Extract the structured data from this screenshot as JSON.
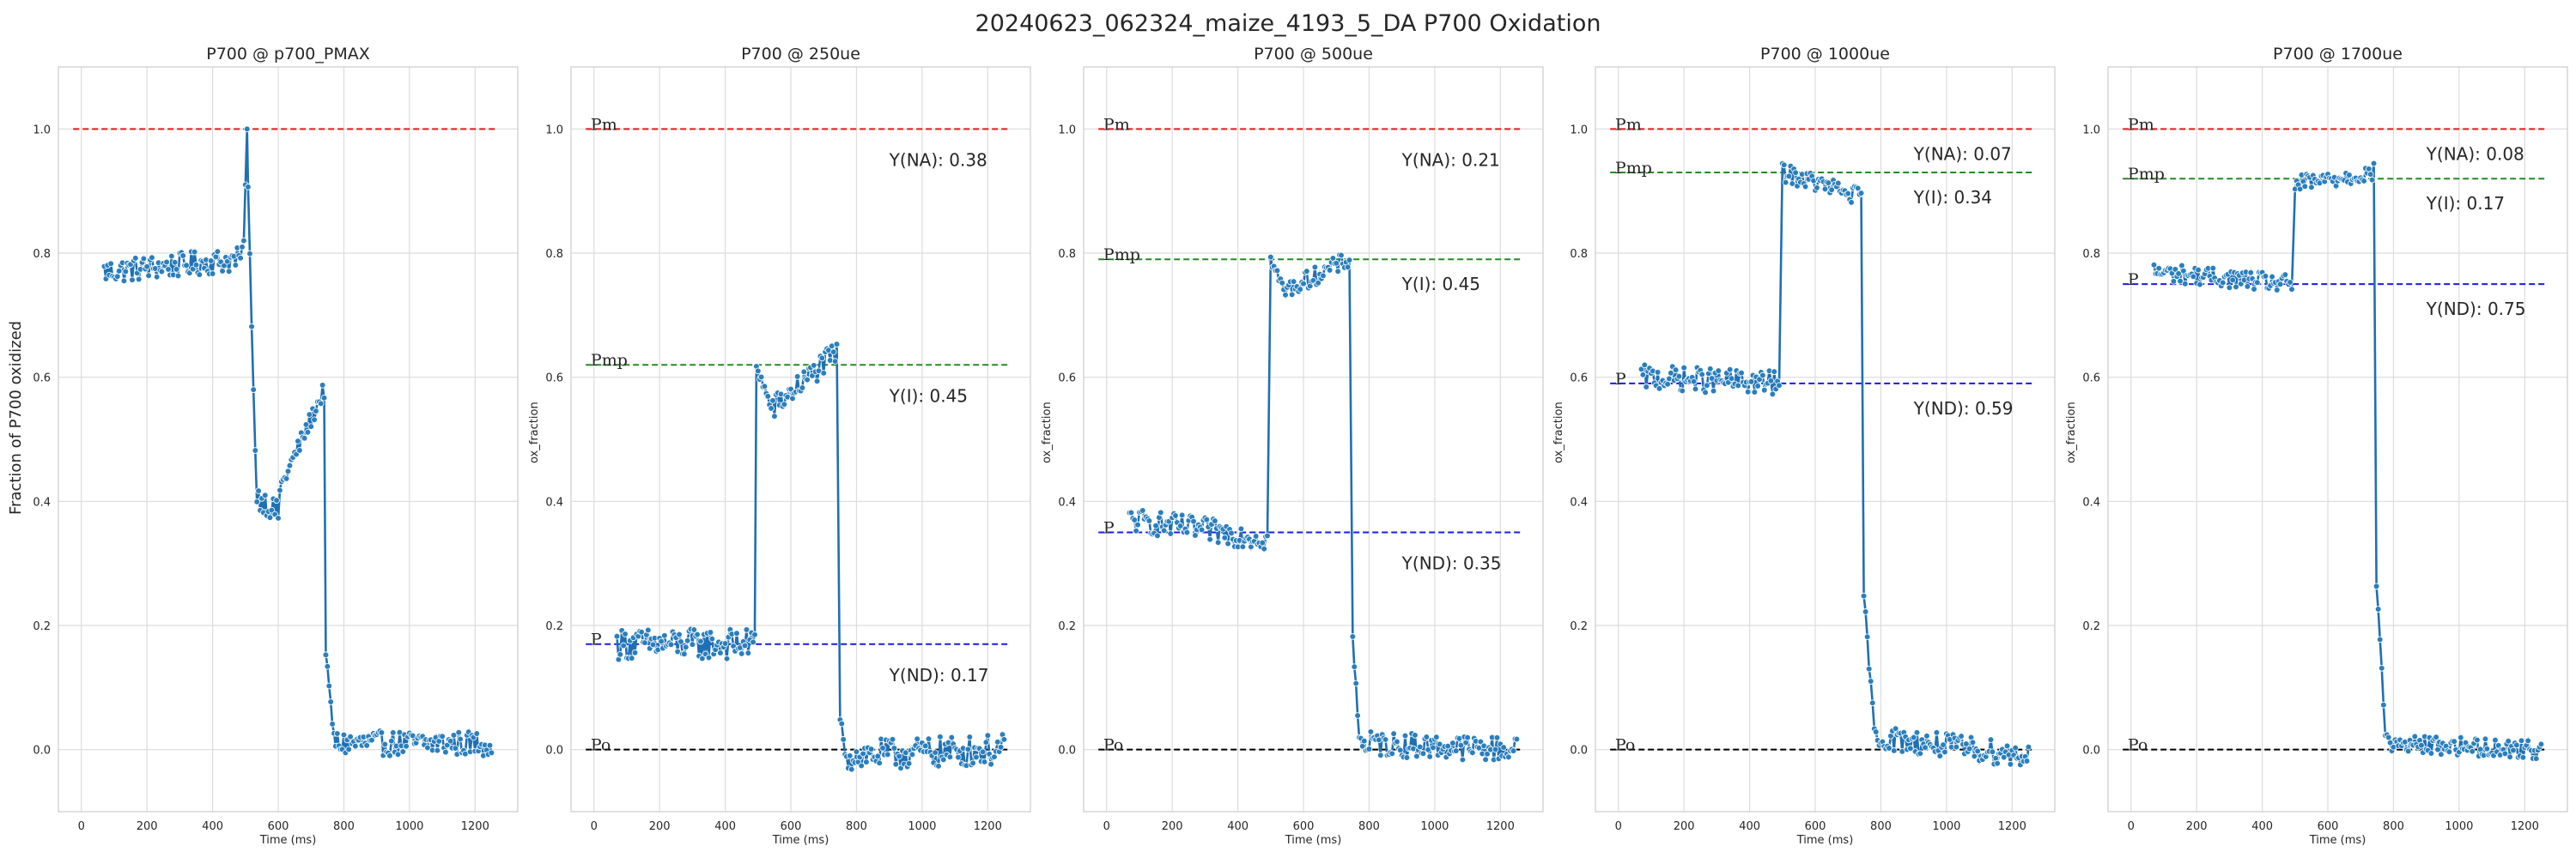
{
  "figure": {
    "title": "20240623_062324_maize_4193_5_DA P700 Oxidation",
    "ylabel": "Fraction of P700 oxidized",
    "colors": {
      "trace": "#1f6fb4",
      "point": "#2a7fbd",
      "pm": "#e31a1c",
      "pmp": "#238b23",
      "p": "#1a1aee",
      "po": "#000000",
      "grid": "#dcdcdc",
      "axes_bg": "#ffffff",
      "frame": "#cccccc"
    }
  },
  "chart_data": [
    {
      "type": "line",
      "title": "P700 @ p700_PMAX",
      "xlabel": "Time (ms)",
      "ylabel": "",
      "xlim": [
        -70,
        1330
      ],
      "ylim": [
        -0.1,
        1.1
      ],
      "xticks": [
        0,
        200,
        400,
        600,
        800,
        1000,
        1200
      ],
      "yticks": [
        0.0,
        0.2,
        0.4,
        0.6,
        0.8,
        1.0
      ],
      "grid": true,
      "ref_lines": [
        {
          "name": "Pm",
          "y": 1.0,
          "color": "#e31a1c",
          "show_label": false
        }
      ],
      "yield_labels": [],
      "segments": [
        {
          "x0": 70,
          "x1": 490,
          "y0": 0.77,
          "y1": 0.79,
          "noise": 0.02
        },
        {
          "x0": 495,
          "x1": 505,
          "y0": 0.82,
          "y1": 1.0,
          "noise": 0.0
        },
        {
          "x0": 508,
          "x1": 530,
          "y0": 0.9,
          "y1": 0.48,
          "noise": 0.01
        },
        {
          "x0": 535,
          "x1": 600,
          "y0": 0.41,
          "y1": 0.38,
          "noise": 0.02
        },
        {
          "x0": 605,
          "x1": 740,
          "y0": 0.42,
          "y1": 0.58,
          "noise": 0.015
        },
        {
          "x0": 745,
          "x1": 770,
          "y0": 0.15,
          "y1": 0.02,
          "noise": 0.01
        },
        {
          "x0": 775,
          "x1": 1250,
          "y0": 0.01,
          "y1": 0.01,
          "noise": 0.02
        }
      ]
    },
    {
      "type": "line",
      "title": "P700 @ 250ue",
      "xlabel": "Time (ms)",
      "ylabel": "ox_fraction",
      "xlim": [
        -70,
        1330
      ],
      "ylim": [
        -0.1,
        1.1
      ],
      "xticks": [
        0,
        200,
        400,
        600,
        800,
        1000,
        1200
      ],
      "yticks": [
        0.0,
        0.2,
        0.4,
        0.6,
        0.8,
        1.0
      ],
      "grid": true,
      "ref_lines": [
        {
          "name": "Pm",
          "y": 1.0,
          "color": "#e31a1c",
          "show_label": true
        },
        {
          "name": "Pmp",
          "y": 0.62,
          "color": "#238b23",
          "show_label": true
        },
        {
          "name": "P",
          "y": 0.17,
          "color": "#1a1aee",
          "show_label": true
        },
        {
          "name": "Po",
          "y": 0.0,
          "color": "#000000",
          "show_label": true
        }
      ],
      "yield_labels": [
        {
          "text": "Y(NA): 0.38",
          "x": 900,
          "y": 0.95
        },
        {
          "text": "Y(I): 0.45",
          "x": 900,
          "y": 0.57
        },
        {
          "text": "Y(ND): 0.17",
          "x": 900,
          "y": 0.12
        }
      ],
      "segments": [
        {
          "x0": 70,
          "x1": 490,
          "y0": 0.17,
          "y1": 0.17,
          "noise": 0.025
        },
        {
          "x0": 495,
          "x1": 540,
          "y0": 0.62,
          "y1": 0.55,
          "noise": 0.01
        },
        {
          "x0": 545,
          "x1": 740,
          "y0": 0.55,
          "y1": 0.64,
          "noise": 0.02
        },
        {
          "x0": 750,
          "x1": 765,
          "y0": 0.05,
          "y1": 0.0,
          "noise": 0.01
        },
        {
          "x0": 770,
          "x1": 1250,
          "y0": -0.01,
          "y1": 0.0,
          "noise": 0.025
        }
      ]
    },
    {
      "type": "line",
      "title": "P700 @ 500ue",
      "xlabel": "Time (ms)",
      "ylabel": "ox_fraction",
      "xlim": [
        -70,
        1330
      ],
      "ylim": [
        -0.1,
        1.1
      ],
      "xticks": [
        0,
        200,
        400,
        600,
        800,
        1000,
        1200
      ],
      "yticks": [
        0.0,
        0.2,
        0.4,
        0.6,
        0.8,
        1.0
      ],
      "grid": true,
      "ref_lines": [
        {
          "name": "Pm",
          "y": 1.0,
          "color": "#e31a1c",
          "show_label": true
        },
        {
          "name": "Pmp",
          "y": 0.79,
          "color": "#238b23",
          "show_label": true
        },
        {
          "name": "P",
          "y": 0.35,
          "color": "#1a1aee",
          "show_label": true
        },
        {
          "name": "Po",
          "y": 0.0,
          "color": "#000000",
          "show_label": true
        }
      ],
      "yield_labels": [
        {
          "text": "Y(NA): 0.21",
          "x": 900,
          "y": 0.95
        },
        {
          "text": "Y(I): 0.45",
          "x": 900,
          "y": 0.75
        },
        {
          "text": "Y(ND): 0.35",
          "x": 900,
          "y": 0.3
        }
      ],
      "segments": [
        {
          "x0": 70,
          "x1": 490,
          "y0": 0.37,
          "y1": 0.34,
          "noise": 0.02
        },
        {
          "x0": 500,
          "x1": 540,
          "y0": 0.79,
          "y1": 0.74,
          "noise": 0.01
        },
        {
          "x0": 545,
          "x1": 740,
          "y0": 0.74,
          "y1": 0.79,
          "noise": 0.015
        },
        {
          "x0": 750,
          "x1": 770,
          "y0": 0.18,
          "y1": 0.02,
          "noise": 0.01
        },
        {
          "x0": 775,
          "x1": 1250,
          "y0": 0.01,
          "y1": 0.0,
          "noise": 0.02
        }
      ]
    },
    {
      "type": "line",
      "title": "P700 @ 1000ue",
      "xlabel": "Time (ms)",
      "ylabel": "ox_fraction",
      "xlim": [
        -70,
        1330
      ],
      "ylim": [
        -0.1,
        1.1
      ],
      "xticks": [
        0,
        200,
        400,
        600,
        800,
        1000,
        1200
      ],
      "yticks": [
        0.0,
        0.2,
        0.4,
        0.6,
        0.8,
        1.0
      ],
      "grid": true,
      "ref_lines": [
        {
          "name": "Pm",
          "y": 1.0,
          "color": "#e31a1c",
          "show_label": true
        },
        {
          "name": "Pmp",
          "y": 0.93,
          "color": "#238b23",
          "show_label": true
        },
        {
          "name": "P",
          "y": 0.59,
          "color": "#1a1aee",
          "show_label": true
        },
        {
          "name": "Po",
          "y": 0.0,
          "color": "#000000",
          "show_label": true
        }
      ],
      "yield_labels": [
        {
          "text": "Y(NA): 0.07",
          "x": 900,
          "y": 0.96
        },
        {
          "text": "Y(I): 0.34",
          "x": 900,
          "y": 0.89
        },
        {
          "text": "Y(ND): 0.59",
          "x": 900,
          "y": 0.55
        }
      ],
      "segments": [
        {
          "x0": 70,
          "x1": 490,
          "y0": 0.6,
          "y1": 0.59,
          "noise": 0.02
        },
        {
          "x0": 500,
          "x1": 740,
          "y0": 0.93,
          "y1": 0.89,
          "noise": 0.015
        },
        {
          "x0": 748,
          "x1": 780,
          "y0": 0.25,
          "y1": 0.03,
          "noise": 0.01
        },
        {
          "x0": 785,
          "x1": 1250,
          "y0": 0.02,
          "y1": -0.01,
          "noise": 0.02
        }
      ]
    },
    {
      "type": "line",
      "title": "P700 @ 1700ue",
      "xlabel": "Time (ms)",
      "ylabel": "ox_fraction",
      "xlim": [
        -70,
        1330
      ],
      "ylim": [
        -0.1,
        1.1
      ],
      "xticks": [
        0,
        200,
        400,
        600,
        800,
        1000,
        1200
      ],
      "yticks": [
        0.0,
        0.2,
        0.4,
        0.6,
        0.8,
        1.0
      ],
      "grid": true,
      "ref_lines": [
        {
          "name": "Pm",
          "y": 1.0,
          "color": "#e31a1c",
          "show_label": true
        },
        {
          "name": "Pmp",
          "y": 0.92,
          "color": "#238b23",
          "show_label": true
        },
        {
          "name": "P",
          "y": 0.75,
          "color": "#1a1aee",
          "show_label": true
        },
        {
          "name": "Po",
          "y": 0.0,
          "color": "#000000",
          "show_label": true
        }
      ],
      "yield_labels": [
        {
          "text": "Y(NA): 0.08",
          "x": 900,
          "y": 0.96
        },
        {
          "text": "Y(I): 0.17",
          "x": 900,
          "y": 0.88
        },
        {
          "text": "Y(ND): 0.75",
          "x": 900,
          "y": 0.71
        }
      ],
      "segments": [
        {
          "x0": 70,
          "x1": 490,
          "y0": 0.77,
          "y1": 0.75,
          "noise": 0.015
        },
        {
          "x0": 500,
          "x1": 740,
          "y0": 0.91,
          "y1": 0.93,
          "noise": 0.015
        },
        {
          "x0": 748,
          "x1": 775,
          "y0": 0.27,
          "y1": 0.03,
          "noise": 0.01
        },
        {
          "x0": 780,
          "x1": 1250,
          "y0": 0.01,
          "y1": 0.0,
          "noise": 0.015
        }
      ]
    }
  ]
}
